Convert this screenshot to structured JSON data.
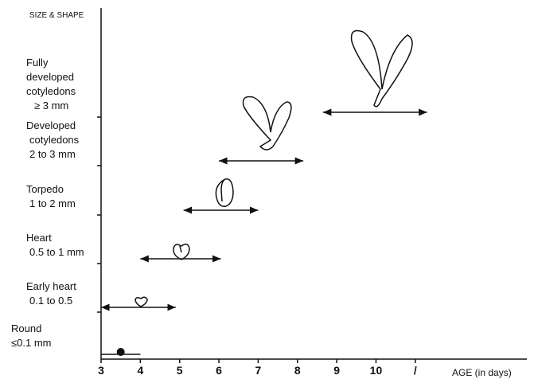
{
  "chart_data": {
    "type": "range",
    "y_label": "SIZE & SHAPE",
    "x_label": "AGE (in days)",
    "categories": [
      [
        "Round",
        "≤0.1 mm"
      ],
      [
        "Early heart",
        "0.1 to 0.5"
      ],
      [
        "Heart",
        "0.5 to 1 mm"
      ],
      [
        "Torpedo",
        "1 to 2 mm"
      ],
      [
        "Developed",
        "cotyledons",
        "2 to 3 mm"
      ],
      [
        "Fully",
        "developed",
        "cotyledons",
        "≥ 3 mm"
      ]
    ],
    "ranges": [
      [
        3,
        4
      ],
      [
        3,
        4.9
      ],
      [
        4,
        6.05
      ],
      [
        5.1,
        7
      ],
      [
        6,
        8.15
      ],
      [
        8.65,
        11.3
      ]
    ],
    "marker": 3.5,
    "color": "#111111",
    "xlim": [
      3,
      13.8
    ],
    "xticks": [
      3,
      4,
      5,
      6,
      7,
      8,
      9,
      10,
      {
        "value": 11,
        "label": "/"
      }
    ]
  }
}
